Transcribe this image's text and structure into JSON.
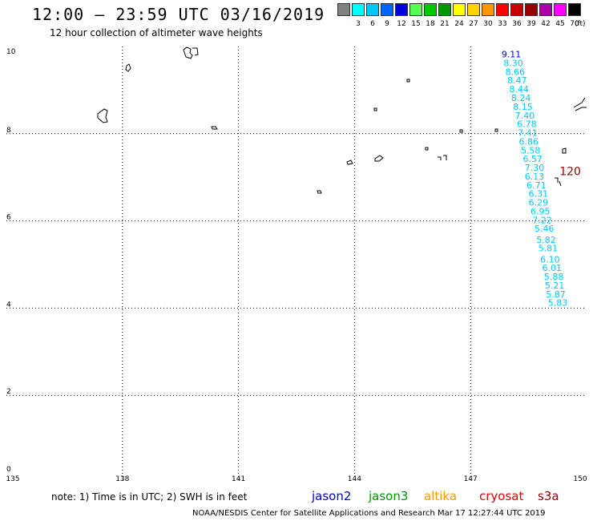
{
  "header": {
    "title": "12:00 – 23:59 UTC 03/16/2019",
    "subtitle": "12 hour collection of altimeter wave heights"
  },
  "legend": {
    "items": [
      {
        "label": "",
        "color": "#808080"
      },
      {
        "label": "3",
        "color": "#00ffff"
      },
      {
        "label": "6",
        "color": "#00c8ff"
      },
      {
        "label": "9",
        "color": "#0064ff"
      },
      {
        "label": "12",
        "color": "#0000dc"
      },
      {
        "label": "15",
        "color": "#55ff55"
      },
      {
        "label": "18",
        "color": "#00c800"
      },
      {
        "label": "21",
        "color": "#009600"
      },
      {
        "label": "24",
        "color": "#ffff00"
      },
      {
        "label": "27",
        "color": "#ffd200"
      },
      {
        "label": "30",
        "color": "#ff9600"
      },
      {
        "label": "33",
        "color": "#ff0000"
      },
      {
        "label": "36",
        "color": "#c80000"
      },
      {
        "label": "39",
        "color": "#960000"
      },
      {
        "label": "42",
        "color": "#aa00aa"
      },
      {
        "label": "45",
        "color": "#ff00ff"
      },
      {
        "label": "70",
        "color": "#000000"
      }
    ],
    "unit": "(ft)"
  },
  "axes": {
    "x_ticks": [
      "135",
      "138",
      "141",
      "144",
      "147",
      "150"
    ],
    "y_ticks": [
      "0",
      "2",
      "4",
      "6",
      "8",
      "10"
    ]
  },
  "track": {
    "points": [
      {
        "lon": 147.8,
        "lat": 9.75,
        "value": "9.11",
        "color": "#0000dc"
      },
      {
        "lon": 147.85,
        "lat": 9.55,
        "value": "8.30",
        "color": "#00c8ff"
      },
      {
        "lon": 147.9,
        "lat": 9.35,
        "value": "8.66",
        "color": "#00c8ff"
      },
      {
        "lon": 147.95,
        "lat": 9.15,
        "value": "8.47",
        "color": "#00c8ff"
      },
      {
        "lon": 148.0,
        "lat": 8.95,
        "value": "8.44",
        "color": "#00c8ff"
      },
      {
        "lon": 148.05,
        "lat": 8.75,
        "value": "8.24",
        "color": "#00c8ff"
      },
      {
        "lon": 148.1,
        "lat": 8.55,
        "value": "8.15",
        "color": "#00c8ff"
      },
      {
        "lon": 148.15,
        "lat": 8.35,
        "value": "7.40",
        "color": "#00c8ff"
      },
      {
        "lon": 148.2,
        "lat": 8.15,
        "value": "6.78",
        "color": "#00c8ff"
      },
      {
        "lon": 148.22,
        "lat": 7.95,
        "value": "7.41",
        "color": "#00c8ff"
      },
      {
        "lon": 148.25,
        "lat": 7.75,
        "value": "6.86",
        "color": "#00c8ff"
      },
      {
        "lon": 148.3,
        "lat": 7.55,
        "value": "5.58",
        "color": "#00c8ff"
      },
      {
        "lon": 148.35,
        "lat": 7.35,
        "value": "6.57",
        "color": "#00c8ff"
      },
      {
        "lon": 148.4,
        "lat": 7.15,
        "value": "7.30",
        "color": "#00c8ff"
      },
      {
        "lon": 148.4,
        "lat": 6.95,
        "value": "6.13",
        "color": "#00c8ff"
      },
      {
        "lon": 148.45,
        "lat": 6.75,
        "value": "6.71",
        "color": "#00c8ff"
      },
      {
        "lon": 148.5,
        "lat": 6.55,
        "value": "6.31",
        "color": "#00c8ff"
      },
      {
        "lon": 148.5,
        "lat": 6.35,
        "value": "6.29",
        "color": "#00c8ff"
      },
      {
        "lon": 148.55,
        "lat": 6.15,
        "value": "6.95",
        "color": "#00c8ff"
      },
      {
        "lon": 148.6,
        "lat": 5.95,
        "value": "7.22",
        "color": "#00c8ff"
      },
      {
        "lon": 148.65,
        "lat": 5.75,
        "value": "5.46",
        "color": "#00c8ff"
      },
      {
        "lon": 148.7,
        "lat": 5.5,
        "value": "5.82",
        "color": "#00c8ff"
      },
      {
        "lon": 148.75,
        "lat": 5.3,
        "value": "5.81",
        "color": "#00c8ff"
      },
      {
        "lon": 148.8,
        "lat": 5.05,
        "value": "6.10",
        "color": "#00c8ff"
      },
      {
        "lon": 148.85,
        "lat": 4.85,
        "value": "6.01",
        "color": "#00c8ff"
      },
      {
        "lon": 148.9,
        "lat": 4.65,
        "value": "5.88",
        "color": "#00c8ff"
      },
      {
        "lon": 148.92,
        "lat": 4.45,
        "value": "5.21",
        "color": "#00c8ff"
      },
      {
        "lon": 148.95,
        "lat": 4.25,
        "value": "5.87",
        "color": "#00c8ff"
      },
      {
        "lon": 149.0,
        "lat": 4.05,
        "value": "5.83",
        "color": "#00c8ff"
      }
    ],
    "label": {
      "text": "120",
      "lon": 149.3,
      "lat": 7.05,
      "color": "#960000"
    }
  },
  "note": "note: 1) Time is in UTC; 2) SWH is in feet",
  "satellites": [
    {
      "name": "jason2",
      "color": "#0000dc"
    },
    {
      "name": "jason3",
      "color": "#009600"
    },
    {
      "name": "altika",
      "color": "#ff9600"
    },
    {
      "name": "cryosat",
      "color": "#dd0000"
    },
    {
      "name": "s3a",
      "color": "#960000"
    }
  ],
  "footer": "NOAA/NESDIS Center for Satellite Applications and Research   Mar 17 12:27:44 UTC 2019"
}
